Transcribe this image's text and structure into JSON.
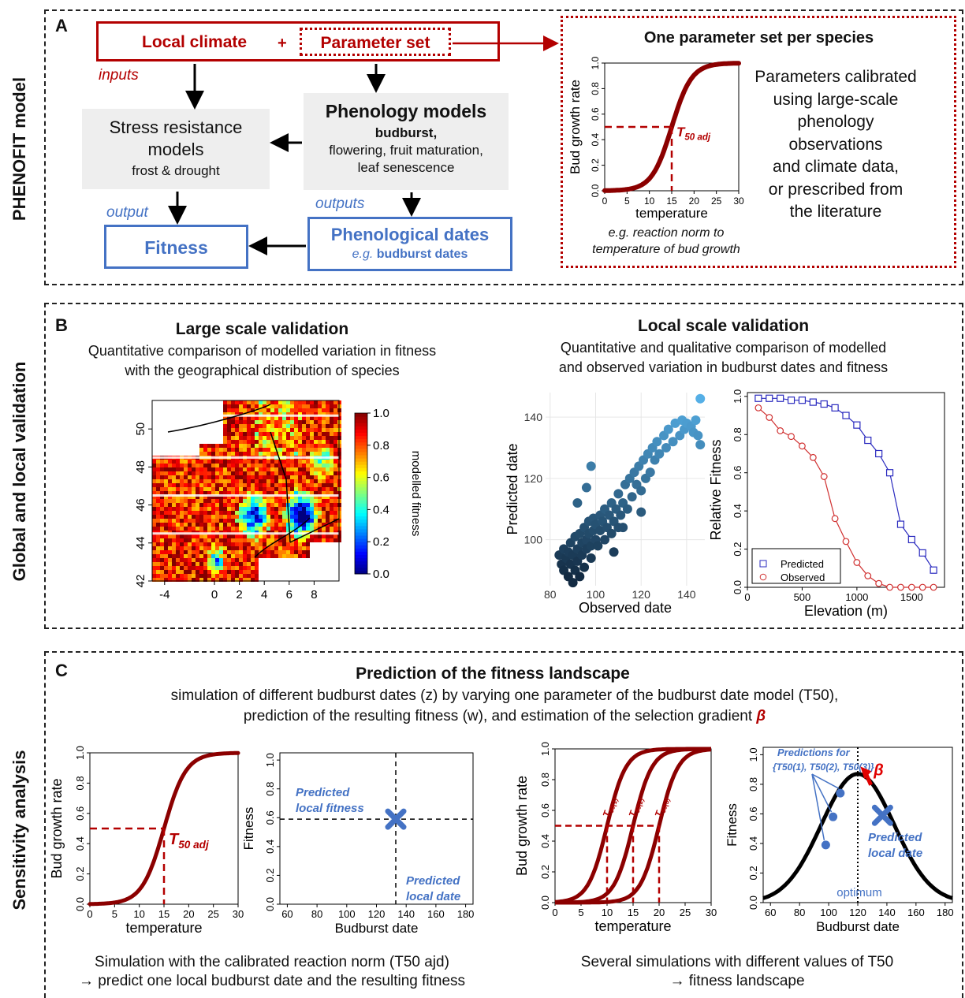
{
  "side_labels": {
    "a": "PHENOFIT model",
    "b": "Global and local validation",
    "c": "Sensitivity analysis"
  },
  "panel_a": {
    "letter": "A",
    "local_climate": "Local climate",
    "plus": "+",
    "parameter_set": "Parameter set",
    "inputs_label": "inputs",
    "stress_title_1": "Stress resistance",
    "stress_title_2": "models",
    "stress_sub": "frost & drought",
    "pheno_title": "Phenology models",
    "pheno_bold": "budburst,",
    "pheno_line2": "flowering, fruit maturation,",
    "pheno_line3": "leaf senescence",
    "output_label": "output",
    "outputs_label": "outputs",
    "fitness_label": "Fitness",
    "pheno_dates_title": "Phenological dates",
    "pheno_dates_eg": "e.g.",
    "pheno_dates_sub": "budburst dates",
    "species_box_title": "One parameter set per species",
    "reaction_caption_1": "e.g. reaction norm to",
    "reaction_caption_2": "temperature of bud growth",
    "calib_lines": [
      "Parameters calibrated",
      "using large-scale",
      "phenology",
      "observations",
      "and climate data,",
      "or prescribed from",
      "the literature"
    ]
  },
  "panel_b": {
    "letter": "B",
    "large_title": "Large scale validation",
    "large_sub_1": "Quantitative comparison of modelled variation in fitness",
    "large_sub_2": "with the geographical distribution of species",
    "local_title": "Local scale validation",
    "local_sub_1": "Quantitative and qualitative comparison of modelled",
    "local_sub_2": "and observed variation in budburst dates and fitness",
    "map_colorbar_label": "modelled fitness"
  },
  "panel_c": {
    "letter": "C",
    "title": "Prediction of the fitness landscape",
    "sub_1": "simulation of different budburst dates (z) by varying one parameter of the budburst date model (T50),",
    "sub_2_a": "prediction of the resulting fitness (w), and estimation of the selection gradient",
    "beta": "β",
    "pred_local_fitness_1": "Predicted",
    "pred_local_fitness_2": "local fitness",
    "pred_local_date_1": "Predicted",
    "pred_local_date_2": "local date",
    "predictions_for_1": "Predictions for",
    "predictions_for_2": "{T50(1), T50(2), T50(3)}",
    "optimum": "optimum",
    "caption_left_1": "Simulation with the calibrated reaction norm (T50 ajd)",
    "caption_left_2": "→ predict one local budburst date and the resulting fitness",
    "caption_right_1": "Several simulations with different values of T50",
    "caption_right_2": "→ fitness landscape"
  },
  "chart_data": [
    {
      "id": "reaction-norm-a",
      "type": "line",
      "xlabel": "temperature",
      "ylabel": "Bud growth rate",
      "xlim": [
        0,
        30
      ],
      "ylim": [
        0,
        1
      ],
      "xticks": [
        0,
        5,
        10,
        15,
        20,
        25,
        30
      ],
      "yticks": [
        0.0,
        0.2,
        0.4,
        0.6,
        0.8,
        1.0
      ],
      "t50": 15,
      "t50_label": "T50 adj",
      "slope": 0.45
    },
    {
      "id": "fitness-map",
      "type": "heatmap",
      "colorbar_label": "modelled fitness",
      "xticks": [
        -4,
        0,
        2,
        4,
        6,
        8
      ],
      "yticks": [
        42,
        44,
        46,
        48,
        50
      ],
      "colorbar_ticks": [
        0.0,
        0.2,
        0.4,
        0.6,
        0.8,
        1.0
      ]
    },
    {
      "id": "predicted-vs-observed",
      "type": "scatter",
      "xlabel": "Observed date",
      "ylabel": "Predicted date",
      "xlim": [
        78,
        148
      ],
      "ylim": [
        85,
        148
      ],
      "xticks": [
        80,
        100,
        120,
        140
      ],
      "yticks": [
        100,
        120,
        140
      ],
      "points": [
        [
          84,
          95
        ],
        [
          85,
          92
        ],
        [
          86,
          97
        ],
        [
          86,
          90
        ],
        [
          87,
          94
        ],
        [
          88,
          88
        ],
        [
          88,
          96
        ],
        [
          89,
          92
        ],
        [
          89,
          99
        ],
        [
          90,
          86
        ],
        [
          90,
          95
        ],
        [
          91,
          90
        ],
        [
          91,
          101
        ],
        [
          92,
          93
        ],
        [
          92,
          97
        ],
        [
          93,
          88
        ],
        [
          93,
          102
        ],
        [
          94,
          95
        ],
        [
          94,
          99
        ],
        [
          95,
          91
        ],
        [
          95,
          104
        ],
        [
          96,
          97
        ],
        [
          96,
          100
        ],
        [
          97,
          102
        ],
        [
          97,
          106
        ],
        [
          98,
          98
        ],
        [
          98,
          94
        ],
        [
          99,
          103
        ],
        [
          99,
          107
        ],
        [
          100,
          100
        ],
        [
          100,
          105
        ],
        [
          101,
          98
        ],
        [
          102,
          108
        ],
        [
          102,
          103
        ],
        [
          103,
          106
        ],
        [
          104,
          100
        ],
        [
          104,
          110
        ],
        [
          105,
          104
        ],
        [
          106,
          108
        ],
        [
          107,
          102
        ],
        [
          107,
          112
        ],
        [
          108,
          106
        ],
        [
          109,
          110
        ],
        [
          110,
          104
        ],
        [
          110,
          115
        ],
        [
          111,
          108
        ],
        [
          112,
          112
        ],
        [
          113,
          118
        ],
        [
          114,
          110
        ],
        [
          115,
          120
        ],
        [
          116,
          114
        ],
        [
          117,
          122
        ],
        [
          118,
          118
        ],
        [
          119,
          124
        ],
        [
          120,
          116
        ],
        [
          121,
          126
        ],
        [
          122,
          120
        ],
        [
          123,
          128
        ],
        [
          124,
          122
        ],
        [
          125,
          130
        ],
        [
          126,
          126
        ],
        [
          127,
          132
        ],
        [
          128,
          128
        ],
        [
          130,
          134
        ],
        [
          131,
          130
        ],
        [
          132,
          136
        ],
        [
          134,
          132
        ],
        [
          135,
          138
        ],
        [
          137,
          134
        ],
        [
          138,
          139
        ],
        [
          139,
          136
        ],
        [
          140,
          138
        ],
        [
          142,
          137
        ],
        [
          143,
          135
        ],
        [
          144,
          139
        ],
        [
          145,
          134
        ],
        [
          146,
          131
        ],
        [
          146,
          146
        ],
        [
          92,
          112
        ],
        [
          96,
          117
        ],
        [
          98,
          124
        ],
        [
          112,
          104
        ],
        [
          120,
          109
        ],
        [
          108,
          96
        ]
      ]
    },
    {
      "id": "fitness-vs-elevation",
      "type": "line",
      "xlabel": "Elevation (m)",
      "ylabel": "Relative Fitness",
      "xlim": [
        0,
        1800
      ],
      "ylim": [
        0,
        1.02
      ],
      "xticks": [
        0,
        500,
        1000,
        1500
      ],
      "yticks": [
        0.0,
        0.2,
        0.4,
        0.6,
        0.8,
        1.0
      ],
      "series": [
        {
          "name": "Predicted",
          "x": [
            100,
            200,
            300,
            400,
            500,
            600,
            700,
            800,
            900,
            1000,
            1100,
            1200,
            1300,
            1400,
            1500,
            1600,
            1700
          ],
          "y": [
            0.99,
            0.99,
            0.99,
            0.98,
            0.98,
            0.97,
            0.96,
            0.94,
            0.9,
            0.85,
            0.77,
            0.7,
            0.6,
            0.33,
            0.25,
            0.18,
            0.09
          ]
        },
        {
          "name": "Observed",
          "x": [
            100,
            200,
            300,
            400,
            500,
            600,
            700,
            800,
            900,
            1000,
            1100,
            1200,
            1300,
            1400,
            1500,
            1600,
            1700
          ],
          "y": [
            0.94,
            0.89,
            0.82,
            0.79,
            0.74,
            0.68,
            0.58,
            0.36,
            0.24,
            0.13,
            0.06,
            0.02,
            0.0,
            0.0,
            0.0,
            0.0,
            0.0
          ]
        }
      ],
      "legend": "bottom-left"
    },
    {
      "id": "reaction-norm-c1",
      "type": "line",
      "xlabel": "temperature",
      "ylabel": "Bud growth rate",
      "xlim": [
        0,
        30
      ],
      "ylim": [
        0,
        1
      ],
      "xticks": [
        0,
        5,
        10,
        15,
        20,
        25,
        30
      ],
      "yticks": [
        0.0,
        0.2,
        0.4,
        0.6,
        0.8,
        1.0
      ],
      "t50": 15,
      "t50_label": "T50 adj",
      "slope": 0.45
    },
    {
      "id": "fitness-point",
      "type": "scatter",
      "xlabel": "Budburst date",
      "ylabel": "Fitness",
      "xlim": [
        55,
        185
      ],
      "ylim": [
        0,
        1.05
      ],
      "xticks": [
        60,
        80,
        100,
        120,
        140,
        160,
        180
      ],
      "yticks": [
        0.0,
        0.2,
        0.4,
        0.6,
        0.8,
        1.0
      ],
      "point": [
        133,
        0.59
      ]
    },
    {
      "id": "reaction-norms-c3",
      "type": "line",
      "xlabel": "temperature",
      "ylabel": "Bud growth rate",
      "xlim": [
        0,
        30
      ],
      "ylim": [
        0,
        1
      ],
      "xticks": [
        0,
        5,
        10,
        15,
        20,
        25,
        30
      ],
      "yticks": [
        0.0,
        0.2,
        0.4,
        0.6,
        0.8,
        1.0
      ],
      "t50s": [
        10,
        15,
        20
      ],
      "t50_labels": [
        "T50(1)",
        "T50(2)",
        "T50(3)"
      ],
      "slope": 0.55
    },
    {
      "id": "fitness-landscape",
      "type": "line",
      "xlabel": "Budburst date",
      "ylabel": "Fitness",
      "xlim": [
        55,
        185
      ],
      "ylim": [
        0,
        1.05
      ],
      "xticks": [
        60,
        80,
        100,
        120,
        140,
        160,
        180
      ],
      "yticks": [
        0.0,
        0.2,
        0.4,
        0.6,
        0.8,
        1.0
      ],
      "optimum": 120,
      "peak": 0.87,
      "width": 25,
      "points": [
        [
          98,
          0.39
        ],
        [
          103,
          0.58
        ],
        [
          108,
          0.74
        ]
      ],
      "predicted": [
        137,
        0.59
      ]
    }
  ]
}
